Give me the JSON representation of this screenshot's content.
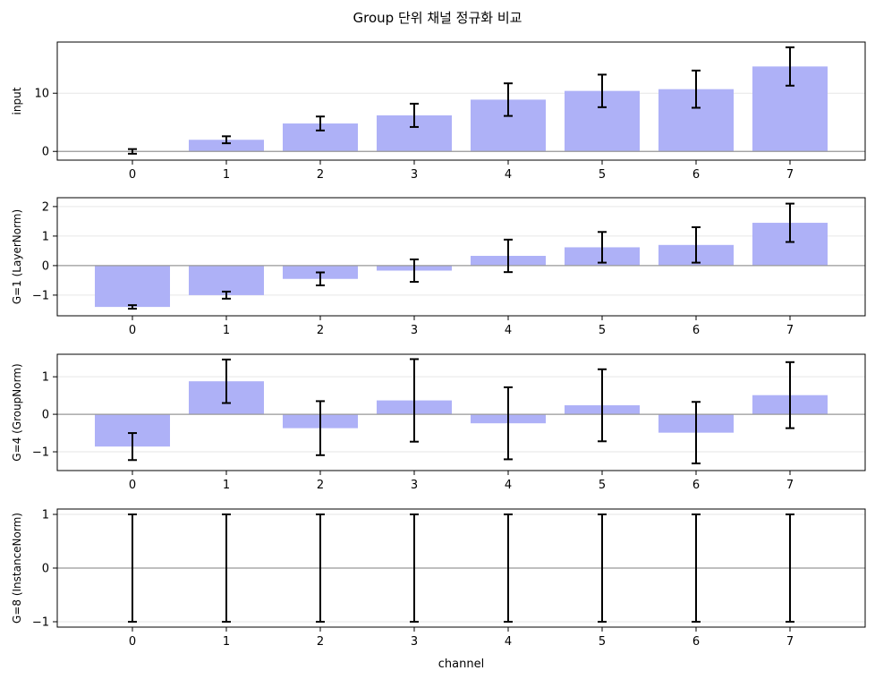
{
  "figure": {
    "title": "Group 단위 채널 정규화 비교",
    "xlabel": "channel"
  },
  "colors": {
    "bar_fill": "#aeb1f7",
    "error_bar": "#000000",
    "zero_line": "#999999",
    "grid": "#e6e6e6"
  },
  "chart_data": [
    {
      "type": "bar",
      "ylabel": "input",
      "categories": [
        "0",
        "1",
        "2",
        "3",
        "4",
        "5",
        "6",
        "7"
      ],
      "values": [
        0.0,
        2.0,
        4.8,
        6.2,
        8.9,
        10.4,
        10.7,
        14.6
      ],
      "error": [
        0.4,
        0.6,
        1.2,
        2.0,
        2.8,
        2.8,
        3.2,
        3.3
      ],
      "ylim": [
        -1.5,
        18.8
      ],
      "yticks": [
        0,
        10
      ],
      "grid": "y"
    },
    {
      "type": "bar",
      "ylabel": "G=1 (LayerNorm)",
      "categories": [
        "0",
        "1",
        "2",
        "3",
        "4",
        "5",
        "6",
        "7"
      ],
      "values": [
        -1.4,
        -1.0,
        -0.45,
        -0.17,
        0.33,
        0.62,
        0.7,
        1.45
      ],
      "error": [
        0.06,
        0.12,
        0.22,
        0.38,
        0.55,
        0.52,
        0.6,
        0.65
      ],
      "ylim": [
        -1.7,
        2.3
      ],
      "yticks": [
        -1,
        0,
        1,
        2
      ],
      "grid": "y"
    },
    {
      "type": "bar",
      "ylabel": "G=4 (GroupNorm)",
      "categories": [
        "0",
        "1",
        "2",
        "3",
        "4",
        "5",
        "6",
        "7"
      ],
      "values": [
        -0.86,
        0.88,
        -0.37,
        0.37,
        -0.24,
        0.24,
        -0.49,
        0.51
      ],
      "error": [
        0.36,
        0.58,
        0.72,
        1.1,
        0.96,
        0.96,
        0.82,
        0.88
      ],
      "ylim": [
        -1.5,
        1.6
      ],
      "yticks": [
        -1,
        0,
        1
      ],
      "grid": "y"
    },
    {
      "type": "bar",
      "ylabel": "G=8 (InstanceNorm)",
      "categories": [
        "0",
        "1",
        "2",
        "3",
        "4",
        "5",
        "6",
        "7"
      ],
      "values": [
        0,
        0,
        0,
        0,
        0,
        0,
        0,
        0
      ],
      "error": [
        1.0,
        1.0,
        1.0,
        1.0,
        1.0,
        1.0,
        1.0,
        1.0
      ],
      "ylim": [
        -1.1,
        1.1
      ],
      "yticks": [
        -1,
        0,
        1
      ],
      "grid": "y"
    }
  ]
}
